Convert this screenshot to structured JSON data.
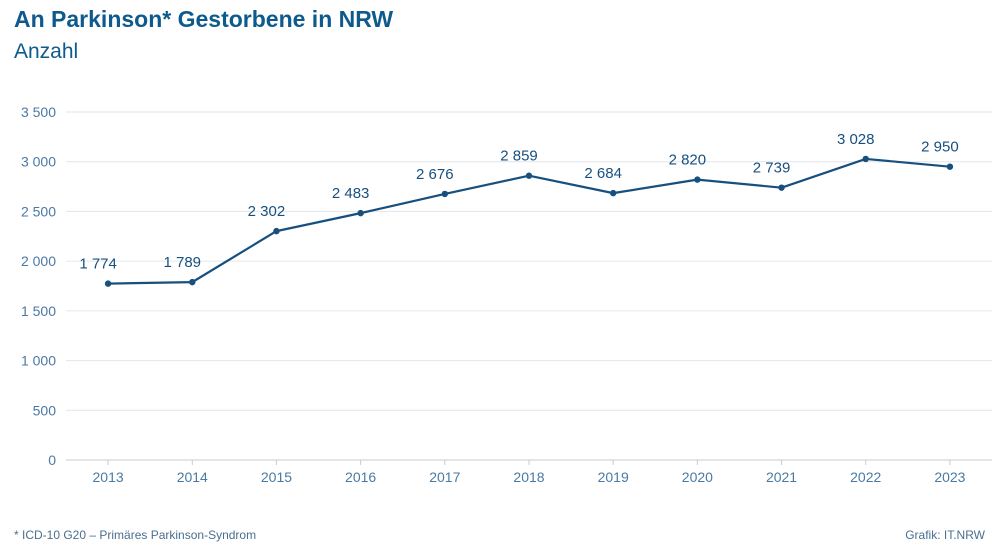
{
  "title": "An Parkinson* Gestorbene in NRW",
  "subtitle": "Anzahl",
  "footnote": "*  ICD-10 G20 – Primäres Parkinson-Syndrom",
  "credit": "Grafik: IT.NRW",
  "colors": {
    "line": "#17507f",
    "title": "#0f5a8c",
    "tick": "#4a7aa3",
    "label": "#17507f",
    "grid": "#e3e6ea",
    "axis": "#c5ccd3"
  },
  "chart_data": {
    "type": "line",
    "x": [
      "2013",
      "2014",
      "2015",
      "2016",
      "2017",
      "2018",
      "2019",
      "2020",
      "2021",
      "2022",
      "2023"
    ],
    "series": [
      {
        "values": [
          1774,
          1789,
          2302,
          2483,
          2676,
          2859,
          2684,
          2820,
          2739,
          3028,
          2950
        ],
        "labels": [
          "1 774",
          "1 789",
          "2 302",
          "2 483",
          "2 676",
          "2 859",
          "2 684",
          "2 820",
          "2 739",
          "3 028",
          "2 950"
        ]
      }
    ],
    "ylim": [
      0,
      3500
    ],
    "yticks": [
      0,
      500,
      1000,
      1500,
      2000,
      2500,
      3000,
      3500
    ],
    "ytick_labels": [
      "0",
      "500",
      "1 000",
      "1 500",
      "2 000",
      "2 500",
      "3 000",
      "3 500"
    ],
    "grid": true,
    "legend": "none"
  }
}
